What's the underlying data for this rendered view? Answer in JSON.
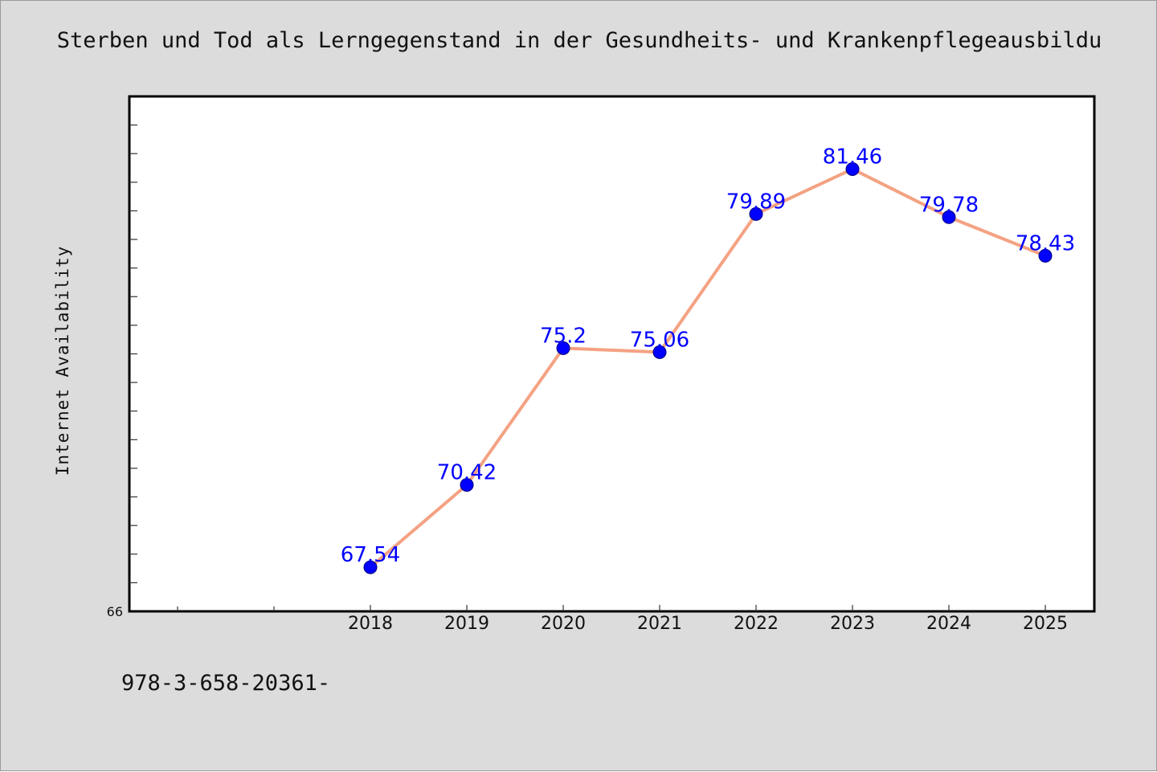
{
  "chart_data": {
    "type": "line",
    "title": "Sterben und Tod als Lerngegenstand in der Gesundheits- und Krankenpflegeausbildu",
    "xlabel": "",
    "ylabel": "Internet Availability",
    "categories": [
      "2018",
      "2019",
      "2020",
      "2021",
      "2022",
      "2023",
      "2024",
      "2025"
    ],
    "series": [
      {
        "values": [
          67.54,
          70.42,
          75.2,
          75.06,
          79.89,
          81.46,
          79.78,
          78.43
        ]
      }
    ],
    "data_labels": [
      "67.54",
      "70.42",
      "75.2",
      "75.06",
      "79.89",
      "81.46",
      "79.78",
      "78.43"
    ],
    "ylim": [
      66,
      84
    ],
    "y_tick_labels": [
      "66"
    ],
    "grid": false,
    "legend": "none",
    "colors": {
      "line": "#f4a283",
      "marker": "#0000ff",
      "data_label": "#0000ff",
      "background": "#dcdcdc",
      "plot_background": "#ffffff"
    }
  },
  "footnote": "978-3-658-20361-"
}
